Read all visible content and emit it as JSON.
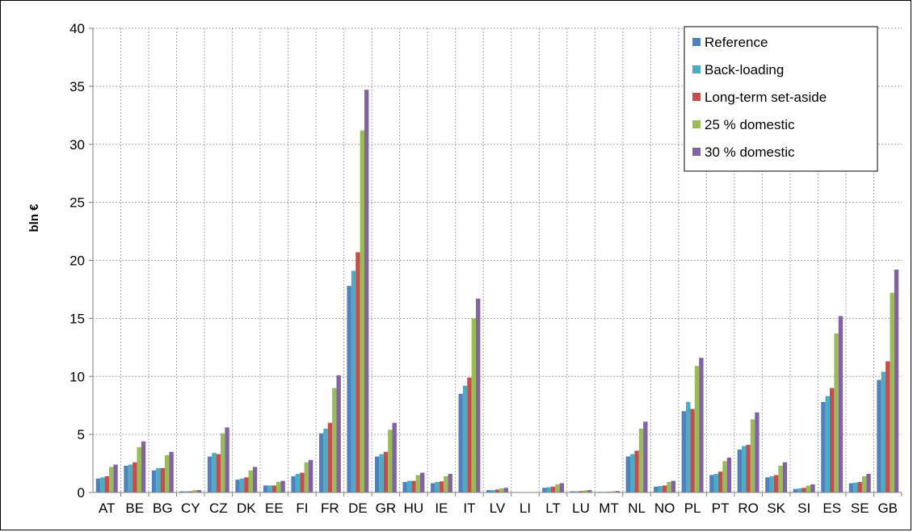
{
  "chart_data": {
    "type": "bar",
    "title": "",
    "xlabel": "",
    "ylabel": "bln €",
    "ylim": [
      0,
      40
    ],
    "yticks": [
      0,
      5,
      10,
      15,
      20,
      25,
      30,
      35,
      40
    ],
    "grid": true,
    "legend_position": "top-right",
    "categories": [
      "AT",
      "BE",
      "BG",
      "CY",
      "CZ",
      "DK",
      "EE",
      "FI",
      "FR",
      "DE",
      "GR",
      "HU",
      "IE",
      "IT",
      "LV",
      "LI",
      "LT",
      "LU",
      "MT",
      "NL",
      "NO",
      "PL",
      "PT",
      "RO",
      "SK",
      "SI",
      "ES",
      "SE",
      "GB"
    ],
    "series": [
      {
        "name": "Reference",
        "color": "#4F81BD",
        "values": [
          1.2,
          2.3,
          1.9,
          0.1,
          3.1,
          1.1,
          0.6,
          1.4,
          5.1,
          17.8,
          3.1,
          0.9,
          0.8,
          8.5,
          0.2,
          0,
          0.4,
          0.1,
          0.05,
          3.1,
          0.5,
          7.0,
          1.5,
          3.7,
          1.3,
          0.3,
          7.8,
          0.8,
          9.7
        ]
      },
      {
        "name": "Back-loading",
        "color": "#4BACC6",
        "values": [
          1.3,
          2.4,
          2.1,
          0.1,
          3.4,
          1.2,
          0.6,
          1.6,
          5.5,
          19.1,
          3.3,
          1.0,
          0.9,
          9.2,
          0.2,
          0,
          0.45,
          0.1,
          0.05,
          3.3,
          0.55,
          7.8,
          1.6,
          4.0,
          1.4,
          0.35,
          8.3,
          0.85,
          10.4
        ]
      },
      {
        "name": "Long-term set-aside",
        "color": "#C0504D",
        "values": [
          1.4,
          2.6,
          2.1,
          0.1,
          3.3,
          1.3,
          0.6,
          1.7,
          6.0,
          20.7,
          3.5,
          1.0,
          0.95,
          9.9,
          0.25,
          0,
          0.5,
          0.12,
          0.06,
          3.6,
          0.6,
          7.2,
          1.8,
          4.1,
          1.5,
          0.4,
          9.0,
          0.9,
          11.3
        ]
      },
      {
        "name": "25 % domestic",
        "color": "#9BBB59",
        "values": [
          2.2,
          3.9,
          3.2,
          0.2,
          5.1,
          1.9,
          0.9,
          2.6,
          9.0,
          31.2,
          5.4,
          1.5,
          1.4,
          15.0,
          0.35,
          0,
          0.7,
          0.18,
          0.1,
          5.5,
          0.9,
          10.9,
          2.7,
          6.3,
          2.3,
          0.6,
          13.7,
          1.4,
          17.2
        ]
      },
      {
        "name": "30 % domestic",
        "color": "#8064A2",
        "values": [
          2.4,
          4.4,
          3.5,
          0.2,
          5.6,
          2.2,
          1.0,
          2.8,
          10.1,
          34.7,
          6.0,
          1.7,
          1.6,
          16.7,
          0.4,
          0,
          0.8,
          0.2,
          0.12,
          6.1,
          1.0,
          11.6,
          3.0,
          6.9,
          2.6,
          0.7,
          15.2,
          1.6,
          19.2
        ]
      }
    ]
  }
}
